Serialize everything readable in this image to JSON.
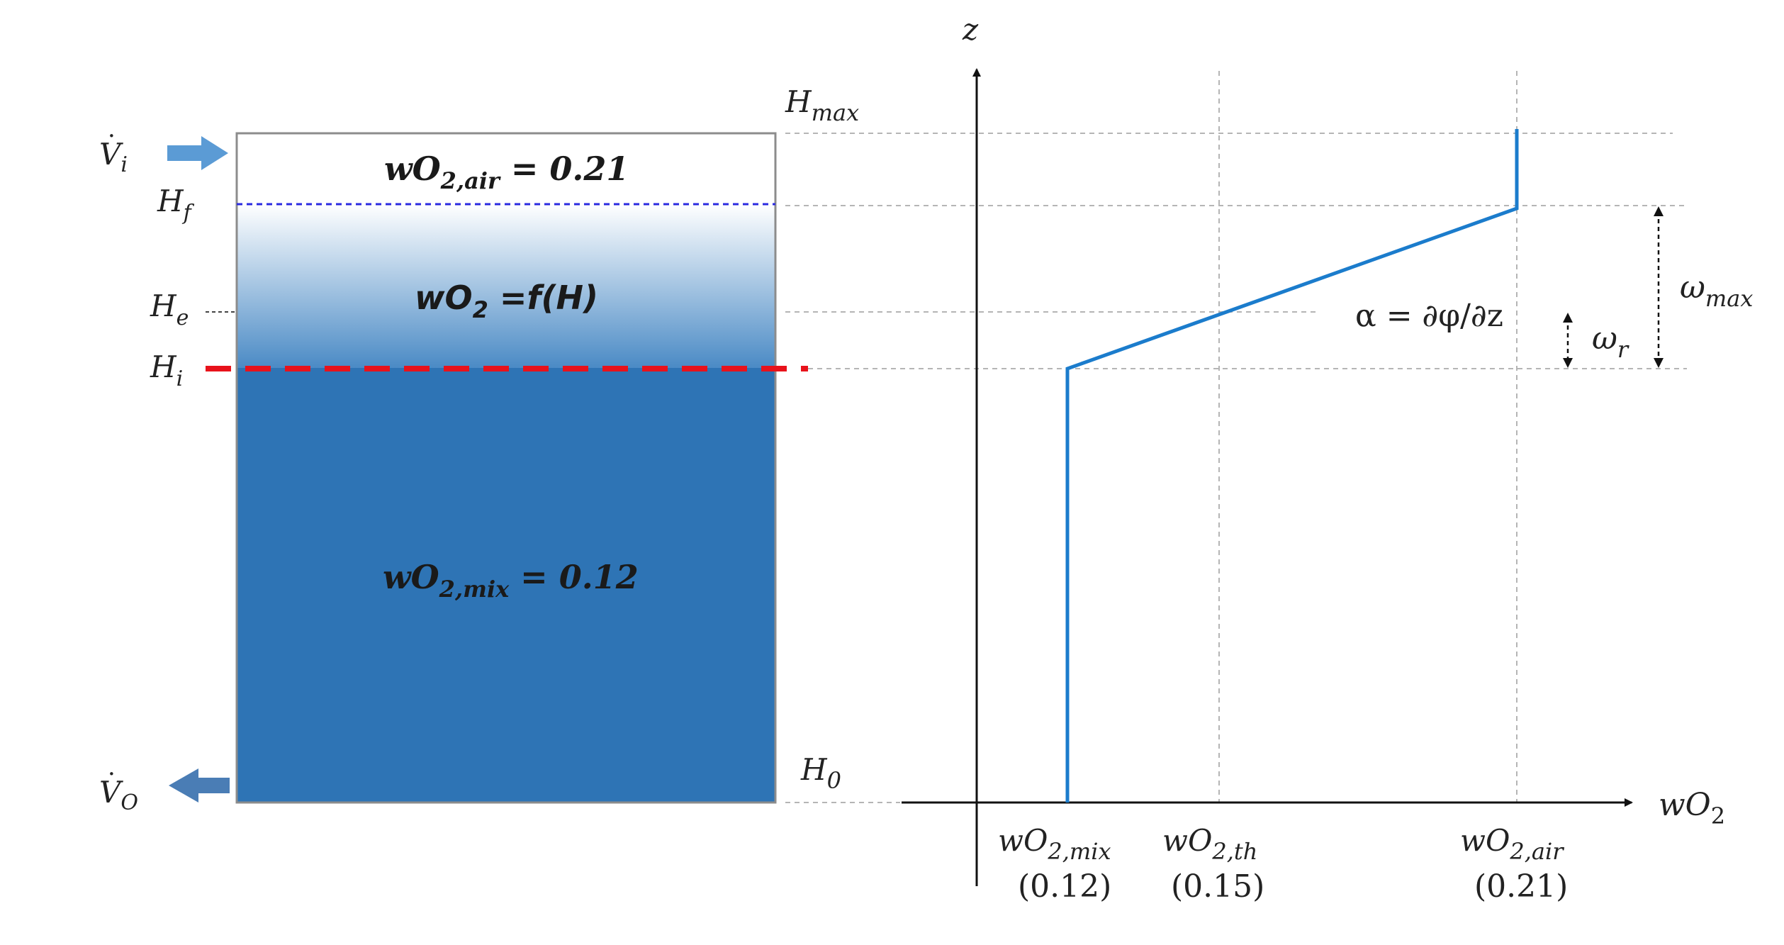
{
  "tank": {
    "inflow_sym": "V",
    "inflow_sub": "i",
    "outflow_sym": "V",
    "outflow_sub": "O",
    "level_f_sym": "H",
    "level_f_sub": "f",
    "level_e_sym": "H",
    "level_e_sub": "e",
    "level_i_sym": "H",
    "level_i_sub": "i",
    "level_max_sym": "H",
    "level_max_sub": "max",
    "level_0_sym": "H",
    "level_0_sub": "0",
    "air_pre": "wO",
    "air_sub": "2,air",
    "air_post": " = 0.21",
    "grad_pre": "wO",
    "grad_sub": "2",
    "grad_post": " =f(H)",
    "mix_pre": "wO",
    "mix_sub": "2,mix",
    "mix_post": " = 0.12"
  },
  "profile": {
    "z_axis_label": "z",
    "x_axis_pre": "wO",
    "x_axis_sub": "2",
    "tick_mix_pre": "wO",
    "tick_mix_sub": "2,mix",
    "tick_mix_val": "(0.12)",
    "tick_th_pre": "wO",
    "tick_th_sub": "2,th",
    "tick_th_val": "(0.15)",
    "tick_air_pre": "wO",
    "tick_air_sub": "2,air",
    "tick_air_val": "(0.21)",
    "alpha_label": "α = ∂φ/∂z",
    "omega_max_sym": "ω",
    "omega_max_sub": "max",
    "omega_r_sym": "ω",
    "omega_r_sub": "r"
  },
  "colors": {
    "water": "#2e74b5",
    "profile_line": "#1b7ccc",
    "red_dash": "#e8121b",
    "blue_dash": "#2a2ae0",
    "arrow_in": "#5b9bd5",
    "arrow_out": "#4a7db5"
  }
}
